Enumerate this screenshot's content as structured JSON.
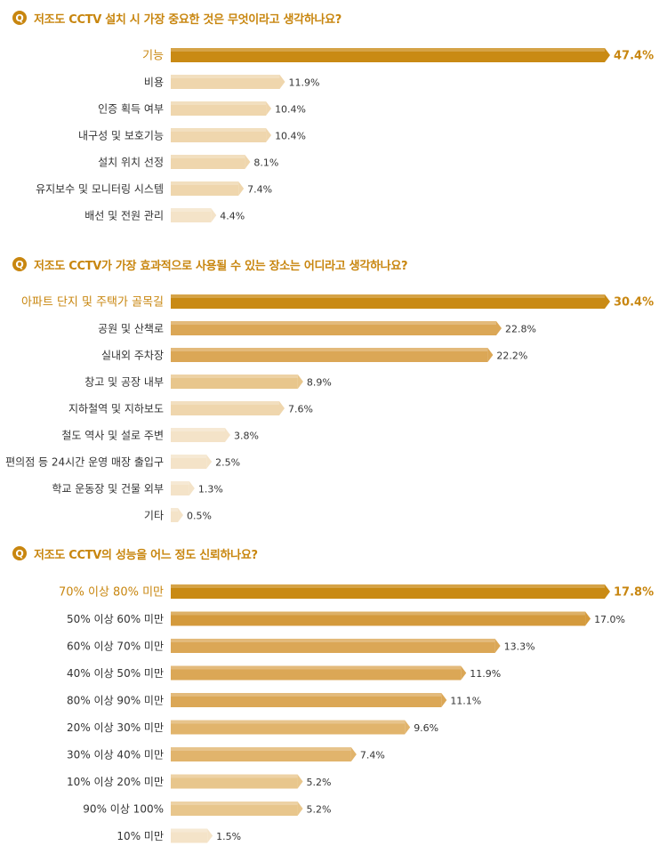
{
  "chart_data": [
    {
      "type": "bar",
      "orientation": "horizontal",
      "title": "저조도 CCTV 설치 시 가장 중요한 것은 무엇이라고 생각하나요?",
      "badge": "Q",
      "unit": "%",
      "categories": [
        "기능",
        "비용",
        "인증 획득 여부",
        "내구성 및 보호기능",
        "설치 위치 선정",
        "유지보수 및 모니터링 시스템",
        "배선 및 전원 관리"
      ],
      "values": [
        47.4,
        11.9,
        10.4,
        10.4,
        8.1,
        7.4,
        4.4
      ],
      "value_labels": [
        "47.4%",
        "11.9%",
        "10.4%",
        "10.4%",
        "8.1%",
        "7.4%",
        "4.4%"
      ],
      "highlight_index": 0
    },
    {
      "type": "bar",
      "orientation": "horizontal",
      "title": "저조도 CCTV가 가장 효과적으로 사용될 수 있는 장소는 어디라고 생각하나요?",
      "badge": "Q",
      "unit": "%",
      "categories": [
        "아파트 단지 및 주택가 골목길",
        "공원 및 산책로",
        "실내외 주차장",
        "창고 및 공장 내부",
        "지하철역 및 지하보도",
        "철도 역사 및 설로 주변",
        "편의점 등 24시간 운영 매장 출입구",
        "학교 운동장 및 건물 외부",
        "기타"
      ],
      "values": [
        30.4,
        22.8,
        22.2,
        8.9,
        7.6,
        3.8,
        2.5,
        1.3,
        0.5
      ],
      "value_labels": [
        "30.4%",
        "22.8%",
        "22.2%",
        "8.9%",
        "7.6%",
        "3.8%",
        "2.5%",
        "1.3%",
        "0.5%"
      ],
      "highlight_index": 0
    },
    {
      "type": "bar",
      "orientation": "horizontal",
      "title": "저조도 CCTV의 성능을 어느 정도 신뢰하나요?",
      "badge": "Q",
      "unit": "%",
      "categories": [
        "70% 이상 80% 미만",
        "50% 이상 60% 미만",
        "60% 이상 70% 미만",
        "40% 이상 50% 미만",
        "80% 이상 90% 미만",
        "20% 이상 30% 미만",
        "30% 이상 40% 미만",
        "10% 이상 20% 미만",
        "90% 이상 100%",
        "10% 미만"
      ],
      "values": [
        17.8,
        17.0,
        13.3,
        11.9,
        11.1,
        9.6,
        7.4,
        5.2,
        5.2,
        1.5
      ],
      "value_labels": [
        "17.8%",
        "17.0%",
        "13.3%",
        "11.9%",
        "11.1%",
        "9.6%",
        "7.4%",
        "5.2%",
        "5.2%",
        "1.5%"
      ],
      "highlight_index": 0
    }
  ],
  "colors": {
    "accent": "#c8860f",
    "highlight_bar": "#c98a14",
    "bar_scale": [
      "#d49a3c",
      "#dba756",
      "#e1b46c",
      "#e8c68c",
      "#efd6ad",
      "#f4e3c8"
    ],
    "label_text": "#333333",
    "highlight_text": "#c8860f"
  }
}
